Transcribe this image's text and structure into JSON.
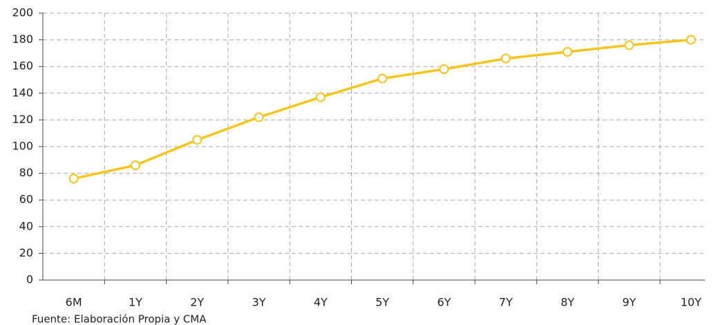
{
  "chart_data": {
    "type": "line",
    "categories": [
      "6M",
      "1Y",
      "2Y",
      "3Y",
      "4Y",
      "5Y",
      "6Y",
      "7Y",
      "8Y",
      "9Y",
      "10Y"
    ],
    "series": [
      {
        "color": "#f5c518",
        "values": [
          76,
          86,
          105,
          122,
          137,
          151,
          158,
          166,
          171,
          176,
          180
        ]
      }
    ],
    "ylim": [
      0,
      200
    ],
    "yticks": [
      0,
      20,
      40,
      60,
      80,
      100,
      120,
      140,
      160,
      180,
      200
    ],
    "grid": true,
    "source": "Fuente: Elaboración Propia y CMA"
  }
}
